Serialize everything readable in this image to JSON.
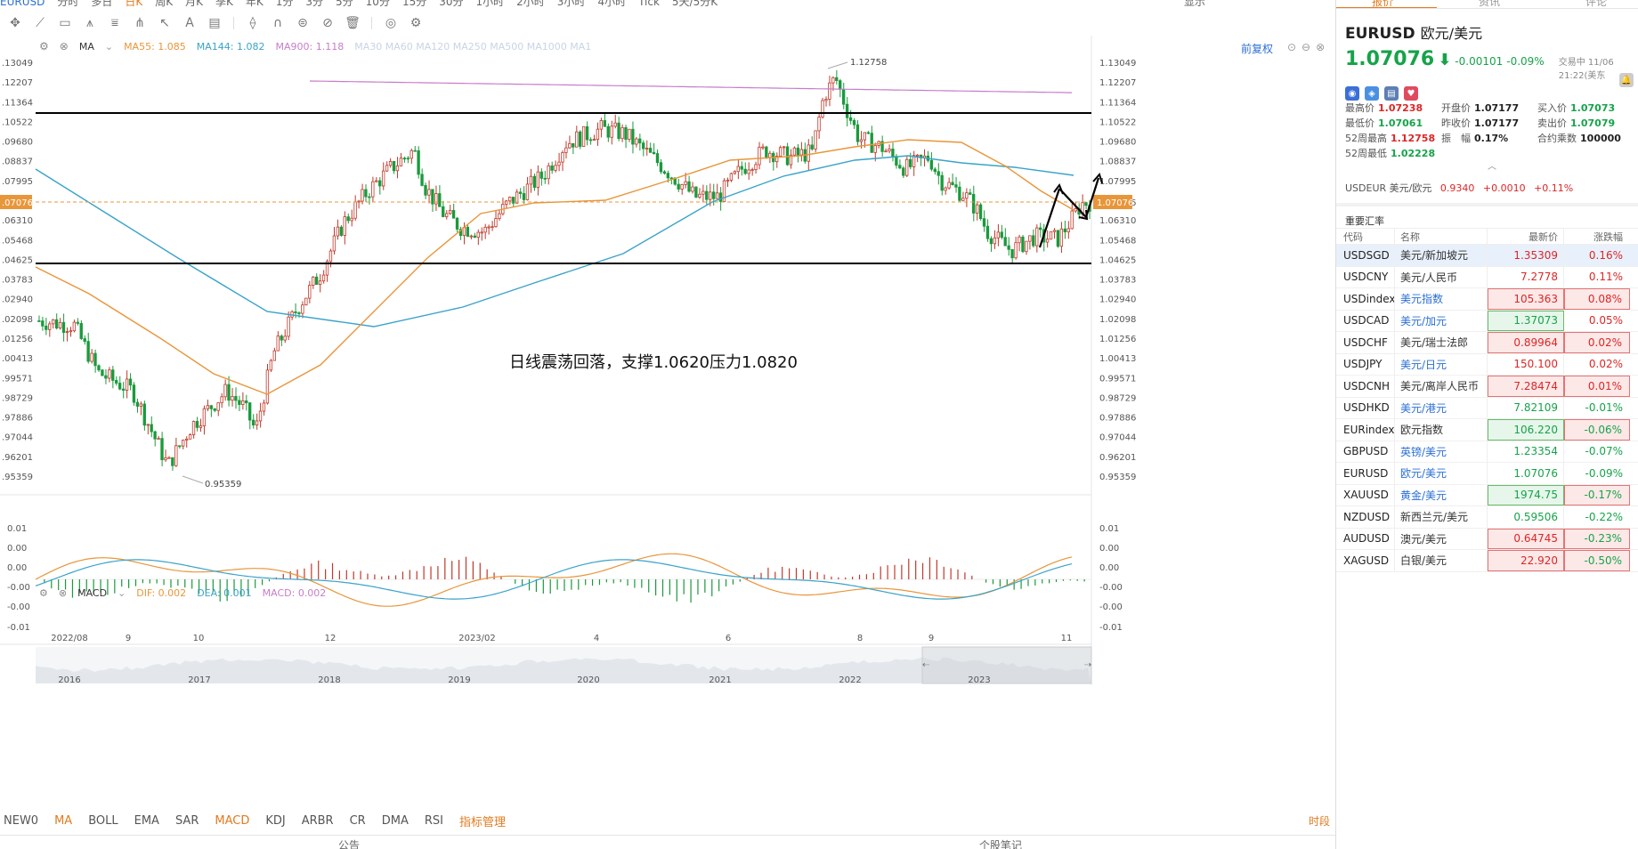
{
  "topbar": {
    "symbol": "EURUSD",
    "periods": [
      "分时",
      "多日",
      "日K",
      "周K",
      "月K",
      "季K",
      "年K",
      "1分",
      "3分",
      "5分",
      "10分",
      "15分",
      "30分",
      "1小时",
      "2小时",
      "3小时",
      "4小时",
      "Tick",
      "5天/5分K"
    ],
    "active_period": "日K",
    "right_label": "显示"
  },
  "indicators": {
    "ma_label": "MA",
    "ma55": "MA55: 1.085",
    "ma144": "MA144: 1.082",
    "ma900": "MA900: 1.118",
    "inactive": [
      "MA30",
      "MA60",
      "MA120",
      "MA250",
      "MA500",
      "MA1000",
      "MA1"
    ],
    "fq_label": "前复权"
  },
  "macd_bar": {
    "label": "MACD",
    "dif": "DIF: 0.002",
    "dea": "DEA: 0.001",
    "macd": "MACD: 0.002"
  },
  "price_axis": [
    "1.13049",
    "1.12207",
    "1.11364",
    "1.10522",
    "1.09680",
    "1.08837",
    "1.07995",
    "1.07076",
    "1.06310",
    "1.05468",
    "1.04625",
    "1.03783",
    "1.02940",
    "1.02098",
    "1.01256",
    "1.00413",
    "0.99571",
    "0.98729",
    "0.97886",
    "0.97044",
    "0.96201",
    "0.95359"
  ],
  "current_price_tag": "1.07076",
  "high_label": "1.12758",
  "low_label": "0.95359",
  "annotation": "日线震荡回落，支撑1.0620压力1.0820",
  "macd_axis": [
    "0.01",
    "0.00",
    "0.00",
    "-0.00",
    "-0.00",
    "-0.01"
  ],
  "time_axis": [
    "2022/08",
    "9",
    "10",
    "12",
    "2023/02",
    "4",
    "6",
    "8",
    "9",
    "11"
  ],
  "overview_years": [
    "2016",
    "2017",
    "2018",
    "2019",
    "2020",
    "2021",
    "2022",
    "2023"
  ],
  "bottom_tabs": [
    "NEW0",
    "MA",
    "BOLL",
    "EMA",
    "SAR",
    "MACD",
    "KDJ",
    "ARBR",
    "CR",
    "DMA",
    "RSI",
    "指标管理"
  ],
  "bottom_tabs_active": [
    "MA",
    "MACD"
  ],
  "bottom_right": "时段",
  "bottom_strip": [
    "公告",
    "个股笔记"
  ],
  "colors": {
    "ma55": "#e8963a",
    "ma144": "#3aa3c9",
    "ma900": "#c77dc9",
    "up": "#c0392b",
    "down": "#1a9a3c",
    "accent": "#e07b1f",
    "link": "#2b6fd6"
  },
  "right_panel": {
    "tabs": [
      "报价",
      "资讯",
      "评论"
    ],
    "symbol": "EURUSD",
    "name": "欧元/美元",
    "price": "1.07076",
    "change": "-0.00101",
    "change_pct": "-0.09%",
    "trade_status": "交易中 11/06 21:22(美东",
    "stats": [
      [
        {
          "k": "最高价",
          "v": "1.07238",
          "c": "red"
        },
        {
          "k": "开盘价",
          "v": "1.07177",
          "c": "black"
        },
        {
          "k": "买入价",
          "v": "1.07073",
          "c": "green"
        }
      ],
      [
        {
          "k": "最低价",
          "v": "1.07061",
          "c": "green"
        },
        {
          "k": "昨收价",
          "v": "1.07177",
          "c": "black"
        },
        {
          "k": "卖出价",
          "v": "1.07079",
          "c": "green"
        }
      ],
      [
        {
          "k": "52周最高",
          "v": "1.12758",
          "c": "red"
        },
        {
          "k": "振　幅",
          "v": "0.17%",
          "c": "black"
        },
        {
          "k": "合约乘数",
          "v": "100000",
          "c": "black"
        }
      ],
      [
        {
          "k": "52周最低",
          "v": "1.02228",
          "c": "green"
        }
      ]
    ],
    "usdeur": {
      "label": "USDEUR 美元/欧元",
      "price": "0.9340",
      "chg": "+0.0010",
      "pct": "+0.11%"
    },
    "fx_header": "重要汇率",
    "table_headers": [
      "代码",
      "名称",
      "最新价",
      "涨跌幅"
    ],
    "rows": [
      {
        "code": "USDSGD",
        "name": "美元/新加坡元",
        "price": "1.35309",
        "pct": "0.16%",
        "dir": "up",
        "link": false,
        "box": false,
        "sel": true
      },
      {
        "code": "USDCNY",
        "name": "美元/人民币",
        "price": "7.2778",
        "pct": "0.11%",
        "dir": "up",
        "link": false,
        "box": false
      },
      {
        "code": "USDindex",
        "name": "美元指数",
        "price": "105.363",
        "pct": "0.08%",
        "dir": "up",
        "link": true,
        "box": "up"
      },
      {
        "code": "USDCAD",
        "name": "美元/加元",
        "price": "1.37073",
        "pct": "0.05%",
        "dir": "up",
        "link": true,
        "box": "dn"
      },
      {
        "code": "USDCHF",
        "name": "美元/瑞士法郎",
        "price": "0.89964",
        "pct": "0.02%",
        "dir": "up",
        "link": false,
        "box": "up"
      },
      {
        "code": "USDJPY",
        "name": "美元/日元",
        "price": "150.100",
        "pct": "0.02%",
        "dir": "up",
        "link": true,
        "box": false
      },
      {
        "code": "USDCNH",
        "name": "美元/离岸人民币",
        "price": "7.28474",
        "pct": "0.01%",
        "dir": "up",
        "link": false,
        "box": "up"
      },
      {
        "code": "USDHKD",
        "name": "美元/港元",
        "price": "7.82109",
        "pct": "-0.01%",
        "dir": "dn",
        "link": true,
        "box": false
      },
      {
        "code": "EURindex",
        "name": "欧元指数",
        "price": "106.220",
        "pct": "-0.06%",
        "dir": "dn",
        "link": false,
        "box": "dn"
      },
      {
        "code": "GBPUSD",
        "name": "英镑/美元",
        "price": "1.23354",
        "pct": "-0.07%",
        "dir": "dn",
        "link": true,
        "box": false
      },
      {
        "code": "EURUSD",
        "name": "欧元/美元",
        "price": "1.07076",
        "pct": "-0.09%",
        "dir": "dn",
        "link": true,
        "box": false
      },
      {
        "code": "XAUUSD",
        "name": "黄金/美元",
        "price": "1974.75",
        "pct": "-0.17%",
        "dir": "dn",
        "link": true,
        "box": "dn"
      },
      {
        "code": "NZDUSD",
        "name": "新西兰元/美元",
        "price": "0.59506",
        "pct": "-0.22%",
        "dir": "dn",
        "link": false,
        "box": false
      },
      {
        "code": "AUDUSD",
        "name": "澳元/美元",
        "price": "0.64745",
        "pct": "-0.23%",
        "dir": "dn",
        "link": false,
        "box": "up"
      },
      {
        "code": "XAGUSD",
        "name": "白银/美元",
        "price": "22.920",
        "pct": "-0.50%",
        "dir": "dn",
        "link": false,
        "box": "up"
      }
    ]
  }
}
